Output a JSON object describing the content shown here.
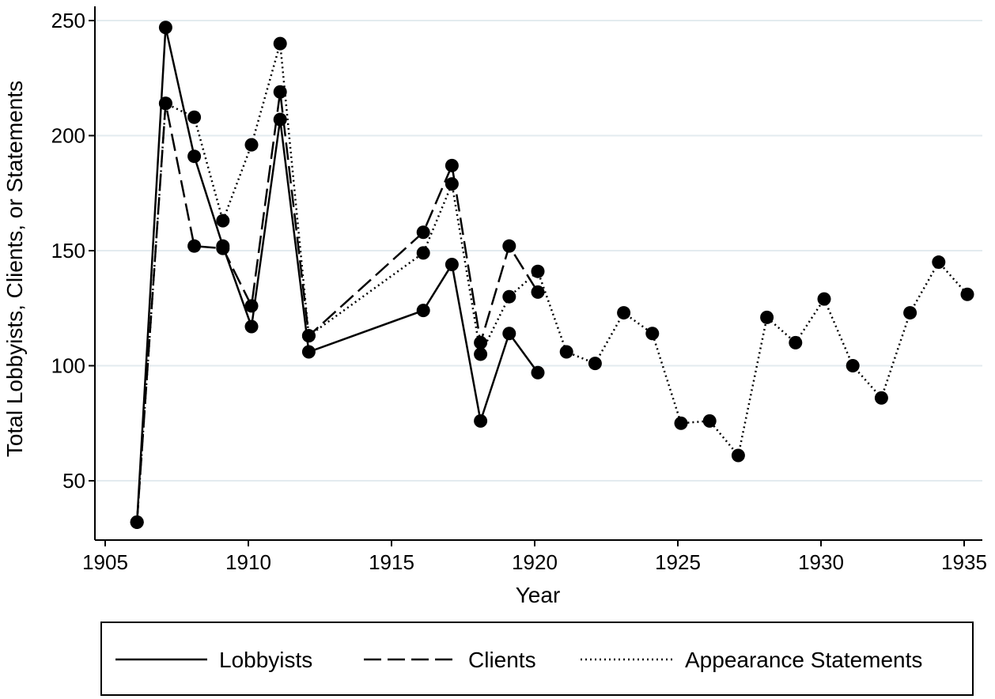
{
  "chart_data": {
    "type": "line",
    "title": "",
    "xlabel": "Year",
    "ylabel": "Total Lobbyists, Clients, or Statements",
    "xlim": [
      1904.5,
      1935.8
    ],
    "ylim": [
      26,
      258
    ],
    "xticks": [
      1905,
      1910,
      1915,
      1920,
      1925,
      1930,
      1935
    ],
    "yticks": [
      50,
      100,
      150,
      200,
      250
    ],
    "grid": "horizontal",
    "legend_position": "bottom",
    "series": [
      {
        "name": "Lobbyists",
        "style": "solid",
        "x": [
          1906,
          1907,
          1908,
          1909,
          1910,
          1911,
          1912,
          1916,
          1917,
          1918,
          1919,
          1920
        ],
        "y": [
          32,
          247,
          191,
          152,
          117,
          207,
          106,
          124,
          144,
          76,
          114,
          97
        ]
      },
      {
        "name": "Clients",
        "style": "dashed",
        "x": [
          1906,
          1907,
          1908,
          1909,
          1910,
          1911,
          1912,
          1916,
          1917,
          1918,
          1919,
          1920
        ],
        "y": [
          32,
          214,
          152,
          151,
          126,
          219,
          113,
          158,
          187,
          110,
          152,
          132
        ]
      },
      {
        "name": "Appearance Statements",
        "style": "dotted",
        "x": [
          1906,
          1907,
          1908,
          1909,
          1910,
          1911,
          1912,
          1916,
          1917,
          1918,
          1919,
          1920,
          1921,
          1922,
          1923,
          1924,
          1925,
          1926,
          1927,
          1928,
          1929,
          1930,
          1931,
          1932,
          1933,
          1934,
          1935
        ],
        "y": [
          32,
          214,
          208,
          163,
          196,
          240,
          113,
          149,
          179,
          105,
          130,
          141,
          106,
          101,
          123,
          114,
          75,
          76,
          61,
          121,
          110,
          129,
          100,
          86,
          123,
          145,
          131
        ]
      }
    ]
  }
}
